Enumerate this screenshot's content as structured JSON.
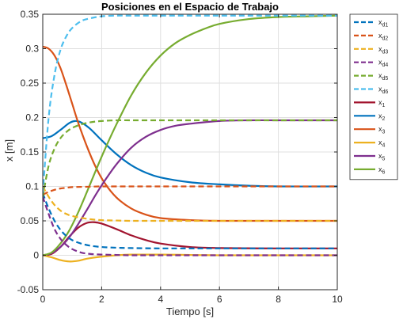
{
  "chart_data": {
    "type": "line",
    "title": "Posiciones en el Espacio de Trabajo",
    "xlabel": "Tiempo [s]",
    "ylabel": "x [m]",
    "xlim": [
      0,
      10
    ],
    "ylim": [
      -0.05,
      0.35
    ],
    "xticks": [
      "0",
      "2",
      "4",
      "6",
      "8",
      "10"
    ],
    "yticks": [
      "-0.05",
      "0",
      "0.05",
      "0.1",
      "0.15",
      "0.2",
      "0.25",
      "0.3",
      "0.35"
    ],
    "grid": true,
    "legend_position": "outside-right",
    "colors": {
      "c1": "#A2142F",
      "c2": "#0072BD",
      "c3": "#D95319",
      "c4": "#EDB120",
      "c5": "#7E2F8E",
      "c6": "#77AC30",
      "c7": "#4DBEEE"
    },
    "series": [
      {
        "name": "x",
        "sub": "d1",
        "color_key": "c2",
        "dash": true,
        "x": [
          0,
          0.2,
          0.4,
          0.6,
          0.8,
          1.0,
          1.3,
          1.6,
          2.0,
          2.5,
          3.0,
          4.0,
          6.0,
          8.0,
          10.0
        ],
        "y": [
          0.09,
          0.068,
          0.05,
          0.037,
          0.028,
          0.022,
          0.017,
          0.014,
          0.012,
          0.011,
          0.0105,
          0.01,
          0.01,
          0.01,
          0.01
        ]
      },
      {
        "name": "x",
        "sub": "d2",
        "color_key": "c3",
        "dash": true,
        "x": [
          0,
          0.2,
          0.4,
          0.6,
          0.8,
          1.0,
          1.5,
          2.0,
          3.0,
          4.0,
          6.0,
          8.0,
          10.0
        ],
        "y": [
          0.088,
          0.092,
          0.095,
          0.097,
          0.098,
          0.099,
          0.0995,
          0.1,
          0.1,
          0.1,
          0.1,
          0.1,
          0.1
        ]
      },
      {
        "name": "x",
        "sub": "d3",
        "color_key": "c4",
        "dash": true,
        "x": [
          0,
          0.2,
          0.4,
          0.6,
          0.8,
          1.0,
          1.5,
          2.0,
          2.5,
          3.0,
          4.0,
          6.0,
          8.0,
          10.0
        ],
        "y": [
          0.1,
          0.085,
          0.073,
          0.065,
          0.06,
          0.057,
          0.053,
          0.051,
          0.0505,
          0.05,
          0.05,
          0.05,
          0.05,
          0.05
        ]
      },
      {
        "name": "x",
        "sub": "d4",
        "color_key": "c5",
        "dash": true,
        "x": [
          0,
          0.2,
          0.4,
          0.6,
          0.8,
          1.0,
          1.3,
          1.6,
          2.0,
          2.5,
          3.0,
          4.0,
          6.0,
          8.0,
          10.0
        ],
        "y": [
          0.085,
          0.06,
          0.038,
          0.024,
          0.015,
          0.009,
          0.004,
          0.002,
          0.001,
          0.0005,
          0,
          0,
          0,
          0,
          0
        ]
      },
      {
        "name": "x",
        "sub": "d5",
        "color_key": "c6",
        "dash": true,
        "x": [
          0,
          0.2,
          0.4,
          0.6,
          0.8,
          1.0,
          1.3,
          1.6,
          2.0,
          2.5,
          3.0,
          4.0,
          6.0,
          8.0,
          10.0
        ],
        "y": [
          0.085,
          0.13,
          0.155,
          0.17,
          0.179,
          0.185,
          0.19,
          0.193,
          0.195,
          0.196,
          0.196,
          0.196,
          0.196,
          0.196,
          0.196
        ]
      },
      {
        "name": "x",
        "sub": "d6",
        "color_key": "c7",
        "dash": true,
        "x": [
          0,
          0.2,
          0.4,
          0.6,
          0.8,
          1.0,
          1.3,
          1.6,
          2.0,
          2.5,
          3.0,
          4.0,
          6.0,
          8.0,
          10.0
        ],
        "y": [
          0.09,
          0.2,
          0.262,
          0.298,
          0.318,
          0.33,
          0.34,
          0.344,
          0.347,
          0.348,
          0.348,
          0.348,
          0.348,
          0.348,
          0.348
        ]
      },
      {
        "name": "x",
        "sub": "1",
        "color_key": "c1",
        "dash": false,
        "x": [
          0,
          0.3,
          0.6,
          0.9,
          1.2,
          1.5,
          1.75,
          2.0,
          2.5,
          3.0,
          3.5,
          4.0,
          5.0,
          6.0,
          8.0,
          10.0
        ],
        "y": [
          0,
          0.002,
          0.012,
          0.027,
          0.04,
          0.047,
          0.048,
          0.046,
          0.038,
          0.029,
          0.022,
          0.017,
          0.012,
          0.0105,
          0.01,
          0.01
        ]
      },
      {
        "name": "x",
        "sub": "2",
        "color_key": "c2",
        "dash": false,
        "x": [
          0,
          0.3,
          0.6,
          0.9,
          1.1,
          1.3,
          1.6,
          2.0,
          2.5,
          3.0,
          3.5,
          4.0,
          5.0,
          6.0,
          7.0,
          8.0,
          10.0
        ],
        "y": [
          0.17,
          0.173,
          0.182,
          0.192,
          0.195,
          0.193,
          0.184,
          0.167,
          0.147,
          0.131,
          0.12,
          0.113,
          0.106,
          0.103,
          0.101,
          0.1,
          0.1
        ]
      },
      {
        "name": "x",
        "sub": "3",
        "color_key": "c3",
        "dash": false,
        "x": [
          0,
          0.2,
          0.4,
          0.6,
          0.8,
          1.0,
          1.2,
          1.5,
          1.8,
          2.1,
          2.5,
          3.0,
          3.5,
          4.0,
          5.0,
          6.0,
          8.0,
          10.0
        ],
        "y": [
          0.303,
          0.3,
          0.29,
          0.272,
          0.247,
          0.22,
          0.193,
          0.158,
          0.128,
          0.105,
          0.084,
          0.068,
          0.059,
          0.054,
          0.051,
          0.05,
          0.05,
          0.05
        ]
      },
      {
        "name": "x",
        "sub": "4",
        "color_key": "c4",
        "dash": false,
        "x": [
          0,
          0.3,
          0.6,
          0.9,
          1.2,
          1.5,
          2.0,
          2.5,
          3.0,
          4.0,
          5.0,
          6.0,
          8.0,
          10.0
        ],
        "y": [
          0,
          -0.003,
          -0.007,
          -0.009,
          -0.008,
          -0.005,
          -0.002,
          0,
          0.001,
          0.001,
          0.0005,
          0,
          0,
          0
        ]
      },
      {
        "name": "x",
        "sub": "5",
        "color_key": "c5",
        "dash": false,
        "x": [
          0,
          0.3,
          0.6,
          0.9,
          1.2,
          1.5,
          1.8,
          2.1,
          2.5,
          3.0,
          3.5,
          4.0,
          4.5,
          5.0,
          6.0,
          7.0,
          8.0,
          10.0
        ],
        "y": [
          0,
          0.003,
          0.012,
          0.026,
          0.045,
          0.066,
          0.088,
          0.108,
          0.132,
          0.156,
          0.172,
          0.182,
          0.188,
          0.191,
          0.195,
          0.196,
          0.196,
          0.196
        ]
      },
      {
        "name": "x",
        "sub": "6",
        "color_key": "c6",
        "dash": false,
        "x": [
          0,
          0.3,
          0.6,
          0.9,
          1.2,
          1.5,
          1.8,
          2.1,
          2.5,
          3.0,
          3.5,
          4.0,
          4.5,
          5.0,
          5.5,
          6.0,
          7.0,
          8.0,
          9.0,
          10.0
        ],
        "y": [
          0,
          0.004,
          0.017,
          0.036,
          0.062,
          0.092,
          0.123,
          0.153,
          0.19,
          0.232,
          0.265,
          0.29,
          0.308,
          0.32,
          0.329,
          0.336,
          0.343,
          0.346,
          0.347,
          0.348
        ]
      }
    ]
  }
}
